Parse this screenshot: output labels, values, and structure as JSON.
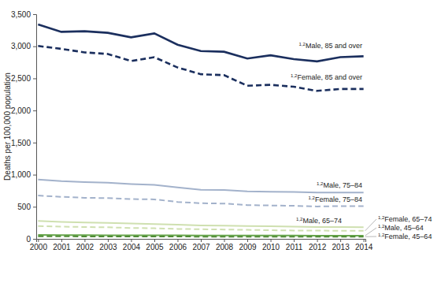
{
  "chart_data": {
    "type": "line",
    "y_label": "Deaths per 100,000 population",
    "categories": [
      "2000",
      "2001",
      "2002",
      "2003",
      "2004",
      "2005",
      "2006",
      "2007",
      "2008",
      "2009",
      "2010",
      "2011",
      "2012",
      "2013",
      "2014"
    ],
    "ylim": [
      0,
      3500
    ],
    "yticks": [
      0,
      500,
      {
        "value": 1000,
        "label": "1,000"
      },
      {
        "value": 1500,
        "label": "1,500"
      },
      {
        "value": 2000,
        "label": "2,000"
      },
      {
        "value": 2500,
        "label": "2,500"
      },
      {
        "value": 3000,
        "label": "3,000"
      },
      {
        "value": 3500,
        "label": "3,500"
      }
    ],
    "grid": false,
    "series": [
      {
        "name": "Male, 85 and over",
        "footnote": "1,2",
        "color": "#1b2f5e",
        "line_style": "solid",
        "values": [
          3340,
          3225,
          3235,
          3210,
          3140,
          3200,
          3025,
          2925,
          2915,
          2810,
          2860,
          2800,
          2765,
          2830,
          2845
        ]
      },
      {
        "name": "Female, 85 and over",
        "footnote": "1,2",
        "color": "#1b2f5e",
        "line_style": "dashed",
        "values": [
          3005,
          2960,
          2905,
          2880,
          2770,
          2830,
          2670,
          2565,
          2550,
          2385,
          2400,
          2370,
          2305,
          2335,
          2335
        ]
      },
      {
        "name": "Male, 75–84",
        "footnote": "1,2",
        "color": "#a3b2cb",
        "line_style": "solid",
        "values": [
          925,
          900,
          885,
          875,
          855,
          840,
          800,
          765,
          760,
          740,
          735,
          730,
          720,
          720,
          720
        ]
      },
      {
        "name": "Female, 75–84",
        "footnote": "1,2",
        "color": "#a3b2cb",
        "line_style": "dashed",
        "values": [
          675,
          655,
          640,
          635,
          620,
          615,
          575,
          555,
          550,
          525,
          520,
          515,
          505,
          510,
          510
        ]
      },
      {
        "name": "Male, 65–74",
        "footnote": "1,2",
        "color": "#cfe0b0",
        "line_style": "solid",
        "values": [
          280,
          265,
          255,
          250,
          240,
          230,
          220,
          210,
          205,
          200,
          195,
          190,
          185,
          185,
          180
        ]
      },
      {
        "name": "Female, 65–74",
        "footnote": "1,2",
        "color": "#cfe0b0",
        "line_style": "dashed",
        "values": [
          200,
          190,
          185,
          180,
          170,
          165,
          155,
          150,
          145,
          140,
          135,
          130,
          130,
          125,
          125
        ]
      },
      {
        "name": "Male, 45–64",
        "footnote": "1,2",
        "color": "#6aa84f",
        "line_style": "solid",
        "values": [
          60,
          58,
          57,
          56,
          55,
          55,
          54,
          52,
          52,
          52,
          51,
          51,
          50,
          50,
          50
        ]
      },
      {
        "name": "Female, 45–64",
        "footnote": "1,2",
        "color": "#4f8a36",
        "line_style": "dashed",
        "values": [
          40,
          39,
          38,
          38,
          37,
          37,
          36,
          35,
          35,
          35,
          35,
          34,
          34,
          34,
          34
        ]
      }
    ]
  }
}
